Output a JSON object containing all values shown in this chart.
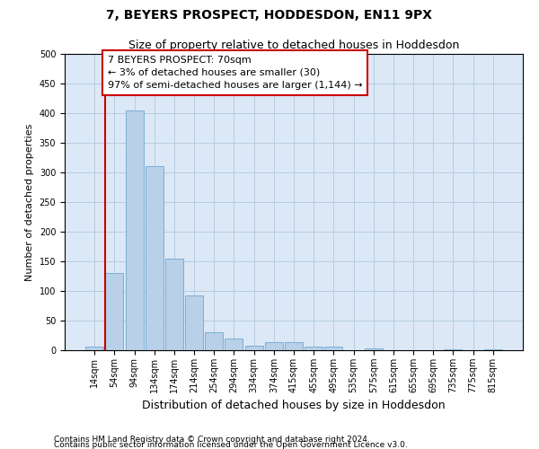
{
  "title": "7, BEYERS PROSPECT, HODDESDON, EN11 9PX",
  "subtitle": "Size of property relative to detached houses in Hoddesdon",
  "xlabel": "Distribution of detached houses by size in Hoddesdon",
  "ylabel": "Number of detached properties",
  "categories": [
    "14sqm",
    "54sqm",
    "94sqm",
    "134sqm",
    "174sqm",
    "214sqm",
    "254sqm",
    "294sqm",
    "334sqm",
    "374sqm",
    "415sqm",
    "455sqm",
    "495sqm",
    "535sqm",
    "575sqm",
    "615sqm",
    "655sqm",
    "695sqm",
    "735sqm",
    "775sqm",
    "815sqm"
  ],
  "values": [
    6,
    130,
    405,
    310,
    155,
    92,
    30,
    20,
    8,
    13,
    13,
    6,
    6,
    0,
    3,
    0,
    0,
    0,
    2,
    0,
    2
  ],
  "bar_color": "#b8d0e8",
  "bar_edge_color": "#7aafd4",
  "annotation_line1": "7 BEYERS PROSPECT: 70sqm",
  "annotation_line2": "← 3% of detached houses are smaller (30)",
  "annotation_line3": "97% of semi-detached houses are larger (1,144) →",
  "annotation_box_facecolor": "#ffffff",
  "annotation_box_edgecolor": "#cc0000",
  "vline_color": "#cc0000",
  "ylim": [
    0,
    500
  ],
  "yticks": [
    0,
    50,
    100,
    150,
    200,
    250,
    300,
    350,
    400,
    450,
    500
  ],
  "footer_line1": "Contains HM Land Registry data © Crown copyright and database right 2024.",
  "footer_line2": "Contains public sector information licensed under the Open Government Licence v3.0.",
  "bg_color": "#ffffff",
  "plot_bg_color": "#dce8f5",
  "grid_color": "#b0c8e0",
  "title_fontsize": 10,
  "subtitle_fontsize": 9,
  "xlabel_fontsize": 9,
  "ylabel_fontsize": 8,
  "tick_fontsize": 7,
  "annotation_fontsize": 8,
  "footer_fontsize": 6.5
}
